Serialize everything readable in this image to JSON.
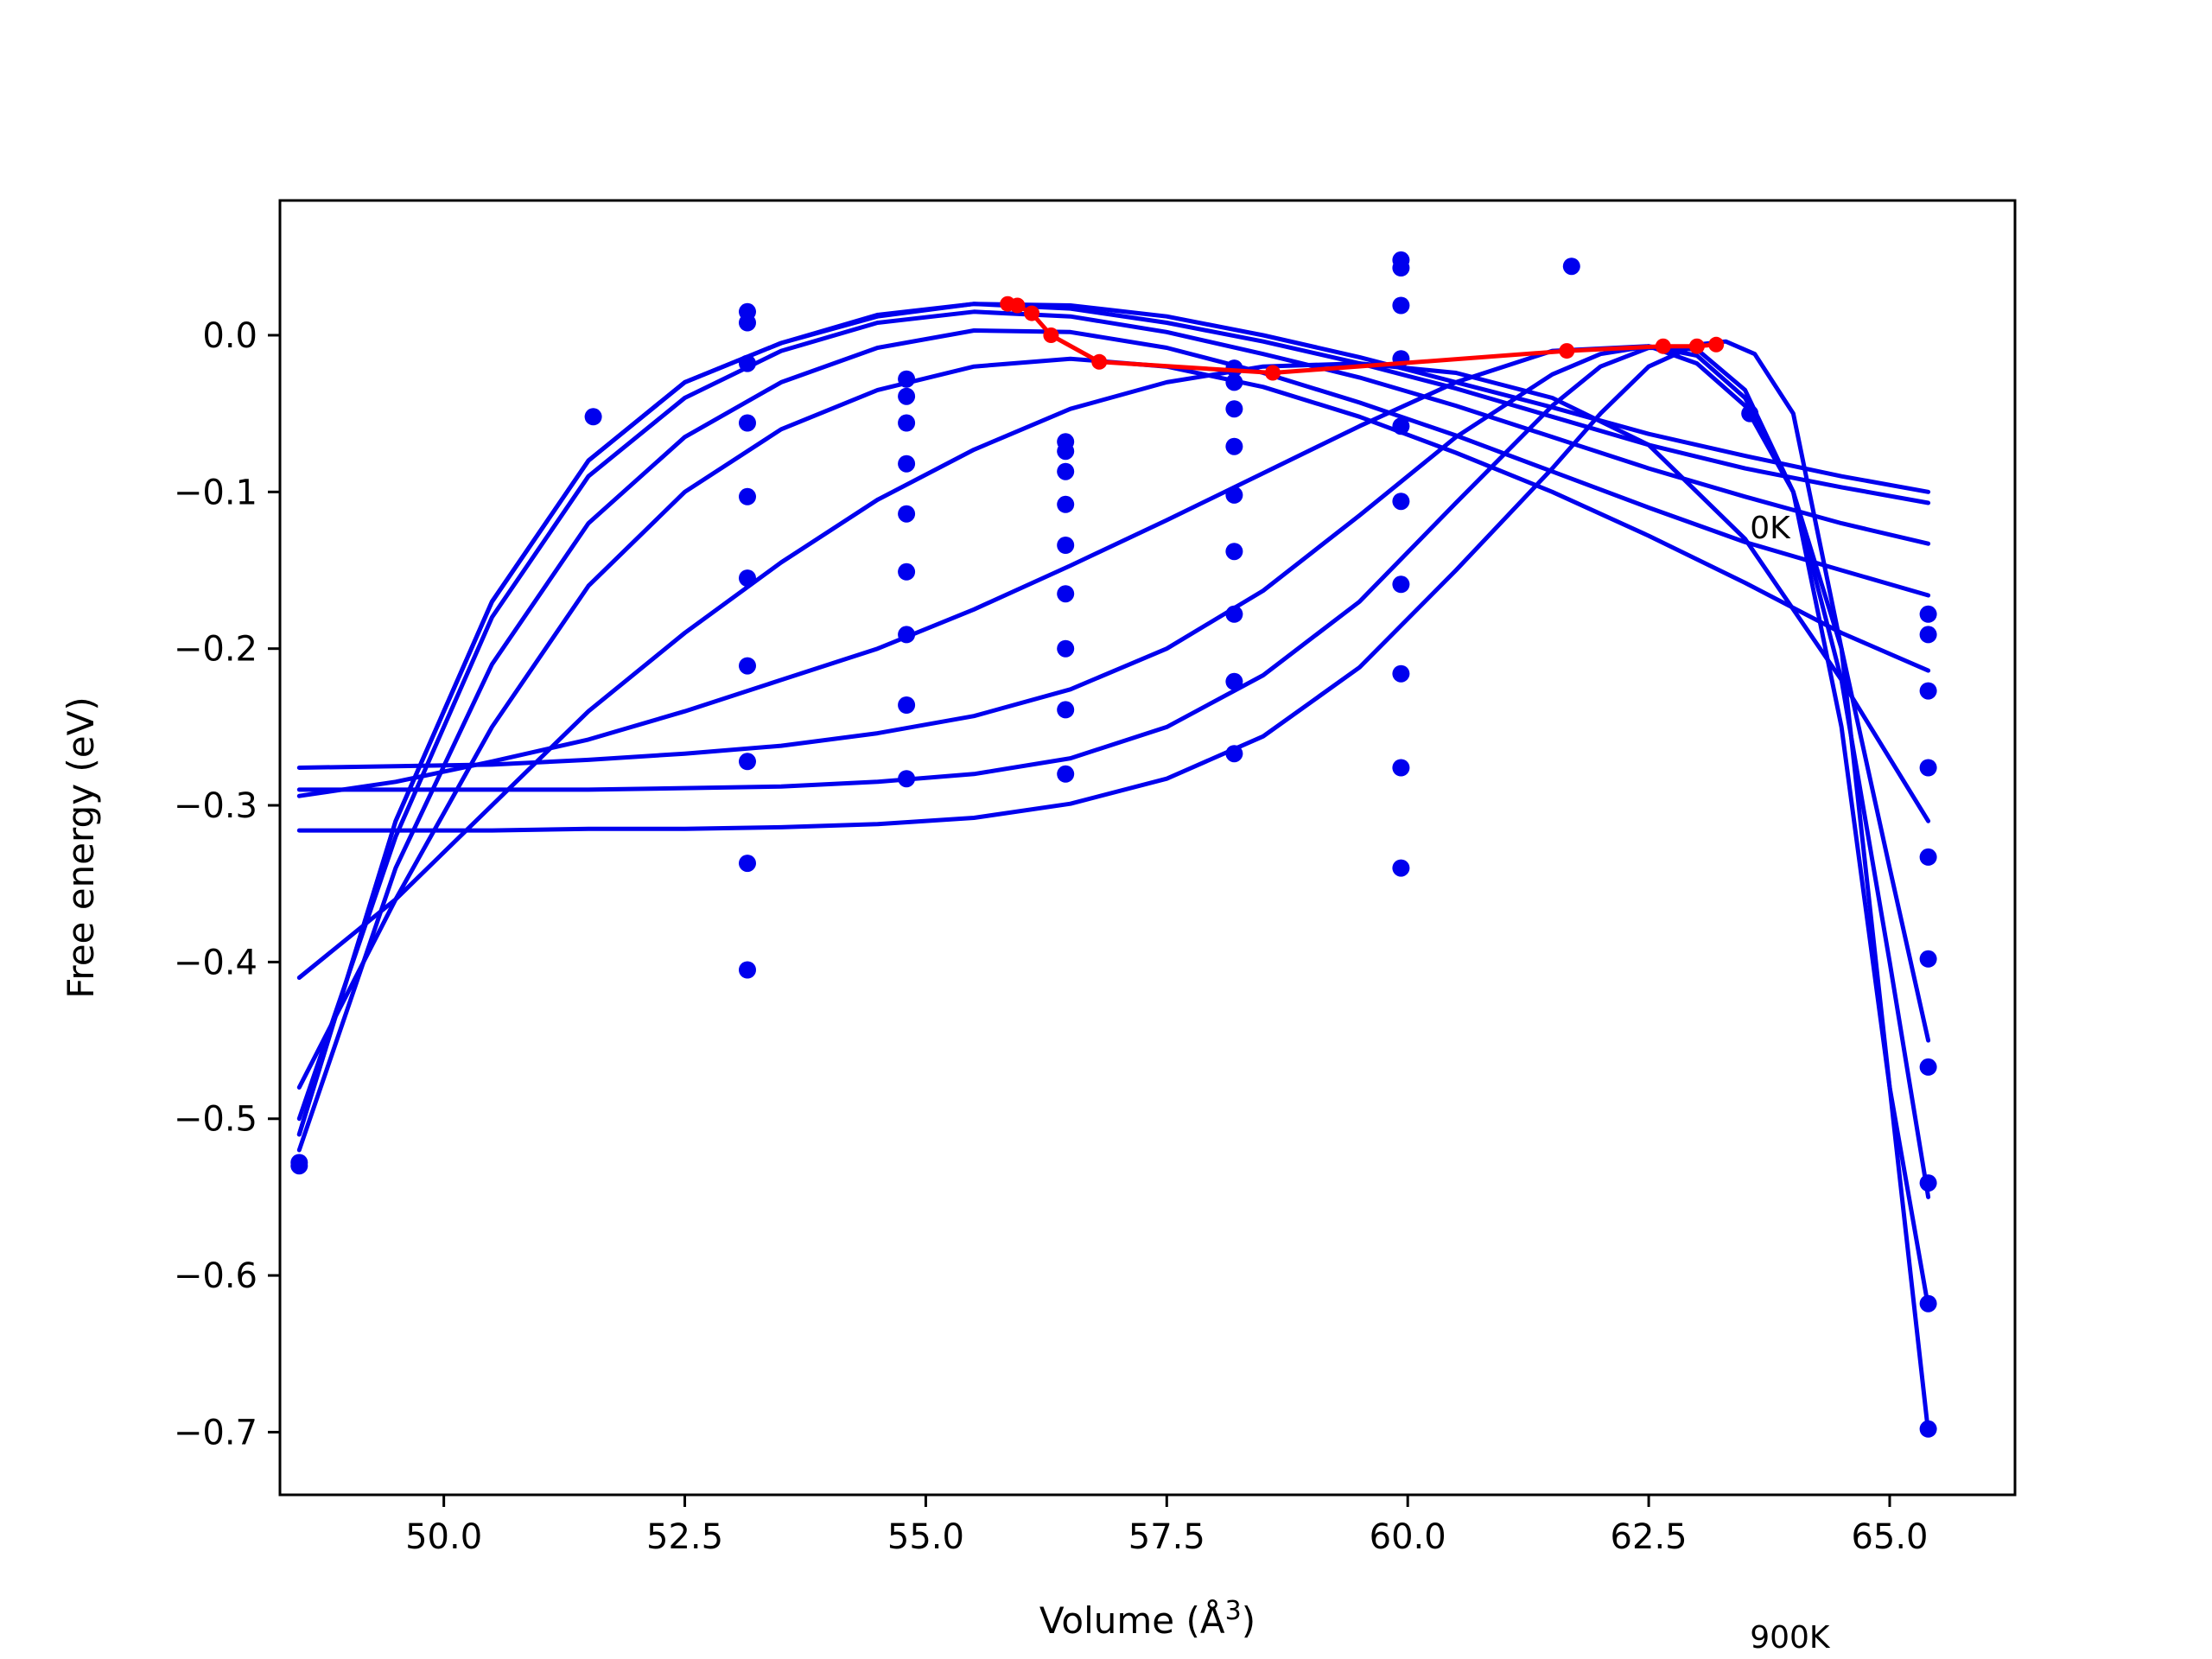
{
  "chart_data": {
    "type": "line",
    "title": "",
    "xlabel": "Volume (Å",
    "xlabel_sup": "3",
    "xlabel_close": ")",
    "ylabel": "Free energy (eV)",
    "xlim": [
      48.3,
      66.3
    ],
    "ylim": [
      -0.74,
      0.086
    ],
    "xticks": [
      {
        "value": 50.0,
        "label": "50.0"
      },
      {
        "value": 52.5,
        "label": "52.5"
      },
      {
        "value": 55.0,
        "label": "55.0"
      },
      {
        "value": 57.5,
        "label": "57.5"
      },
      {
        "value": 60.0,
        "label": "60.0"
      },
      {
        "value": 62.5,
        "label": "62.5"
      },
      {
        "value": 65.0,
        "label": "65.0"
      }
    ],
    "yticks": [
      {
        "value": 0.0,
        "label": "0.0"
      },
      {
        "value": -0.1,
        "label": "−0.1"
      },
      {
        "value": -0.2,
        "label": "−0.2"
      },
      {
        "value": -0.3,
        "label": "−0.3"
      },
      {
        "value": -0.4,
        "label": "−0.4"
      },
      {
        "value": -0.5,
        "label": "−0.5"
      },
      {
        "value": -0.6,
        "label": "−0.6"
      },
      {
        "value": -0.7,
        "label": "−0.7"
      }
    ],
    "grid": false,
    "colors": {
      "fit": "#0000ee",
      "points": "#0000ee",
      "minimum": "#ff0000"
    },
    "annotations": [
      {
        "text": "0K",
        "x": 63.55,
        "y": -0.122
      },
      {
        "text": "900K",
        "x": 63.55,
        "y": -0.83
      }
    ],
    "fit_curves": [
      {
        "x": [
          48.5,
          49.5,
          50.5,
          51.5,
          52.5,
          53.5,
          54.5,
          55.5,
          56.5,
          57.5,
          58.5,
          59.5,
          60.5,
          61.5,
          62.5,
          63.5,
          64.5,
          65.4
        ],
        "y": [
          -0.51,
          -0.31,
          -0.17,
          -0.08,
          -0.03,
          -0.005,
          0.013,
          0.02,
          0.019,
          0.012,
          0.0,
          -0.014,
          -0.03,
          -0.046,
          -0.063,
          -0.077,
          -0.09,
          -0.1
        ]
      },
      {
        "x": [
          48.5,
          49.5,
          50.5,
          51.5,
          52.5,
          53.5,
          54.5,
          55.5,
          56.5,
          57.5,
          58.5,
          59.5,
          60.5,
          61.5,
          62.5,
          63.5,
          64.5,
          65.4
        ],
        "y": [
          -0.51,
          -0.31,
          -0.17,
          -0.08,
          -0.03,
          -0.005,
          0.012,
          0.02,
          0.017,
          0.008,
          -0.004,
          -0.018,
          -0.034,
          -0.052,
          -0.07,
          -0.085,
          -0.097,
          -0.107
        ]
      },
      {
        "x": [
          48.5,
          49.5,
          50.5,
          51.5,
          52.5,
          53.5,
          54.5,
          55.5,
          56.5,
          57.5,
          58.5,
          59.5,
          60.5,
          61.5,
          62.5,
          63.5,
          64.5,
          65.4
        ],
        "y": [
          -0.5,
          -0.32,
          -0.18,
          -0.09,
          -0.04,
          -0.01,
          0.008,
          0.015,
          0.012,
          0.002,
          -0.012,
          -0.027,
          -0.045,
          -0.065,
          -0.085,
          -0.103,
          -0.12,
          -0.133
        ]
      },
      {
        "x": [
          48.5,
          49.5,
          50.5,
          51.5,
          52.5,
          53.5,
          54.5,
          55.5,
          56.5,
          57.5,
          58.5,
          59.5,
          60.5,
          61.5,
          62.5,
          63.5,
          64.5,
          65.4
        ],
        "y": [
          -0.52,
          -0.34,
          -0.21,
          -0.12,
          -0.065,
          -0.03,
          -0.008,
          0.003,
          0.002,
          -0.008,
          -0.024,
          -0.043,
          -0.064,
          -0.087,
          -0.11,
          -0.132,
          -0.15,
          -0.166
        ]
      },
      {
        "x": [
          48.5,
          49.5,
          50.5,
          51.5,
          52.5,
          53.5,
          54.5,
          55.5,
          56.5,
          57.5,
          58.5,
          59.5,
          60.5,
          61.5,
          62.5,
          63.5,
          64.5,
          65.4
        ],
        "y": [
          -0.48,
          -0.36,
          -0.25,
          -0.16,
          -0.1,
          -0.06,
          -0.035,
          -0.02,
          -0.015,
          -0.02,
          -0.033,
          -0.052,
          -0.075,
          -0.1,
          -0.128,
          -0.158,
          -0.19,
          -0.214
        ]
      },
      {
        "x": [
          48.5,
          49.5,
          50.5,
          51.5,
          52.5,
          53.5,
          54.5,
          55.5,
          56.5,
          57.5,
          58.5,
          59.5,
          60.5,
          61.5,
          62.5,
          63.5,
          64.5,
          65.4
        ],
        "y": [
          -0.41,
          -0.36,
          -0.3,
          -0.24,
          -0.19,
          -0.145,
          -0.105,
          -0.073,
          -0.047,
          -0.03,
          -0.02,
          -0.018,
          -0.024,
          -0.04,
          -0.07,
          -0.13,
          -0.22,
          -0.31
        ]
      },
      {
        "x": [
          48.5,
          49.5,
          50.5,
          51.5,
          52.5,
          53.5,
          54.5,
          55.5,
          56.5,
          57.5,
          58.5,
          59.5,
          60.5,
          61.5,
          62.5,
          63.0,
          63.5,
          64.0,
          64.5,
          65.0,
          65.4
        ],
        "y": [
          -0.294,
          -0.285,
          -0.272,
          -0.258,
          -0.24,
          -0.22,
          -0.2,
          -0.175,
          -0.147,
          -0.118,
          -0.088,
          -0.058,
          -0.03,
          -0.01,
          -0.007,
          -0.018,
          -0.045,
          -0.1,
          -0.2,
          -0.34,
          -0.45
        ]
      },
      {
        "x": [
          48.5,
          49.5,
          50.5,
          51.5,
          52.5,
          53.5,
          54.5,
          55.5,
          56.5,
          57.5,
          58.5,
          59.5,
          60.5,
          61.5,
          62.0,
          62.5,
          63.0,
          63.5,
          64.0,
          64.5,
          65.0,
          65.4
        ],
        "y": [
          -0.276,
          -0.275,
          -0.274,
          -0.271,
          -0.267,
          -0.262,
          -0.254,
          -0.243,
          -0.226,
          -0.2,
          -0.163,
          -0.115,
          -0.065,
          -0.025,
          -0.012,
          -0.007,
          -0.013,
          -0.04,
          -0.1,
          -0.22,
          -0.4,
          -0.55
        ]
      },
      {
        "x": [
          48.5,
          49.5,
          50.5,
          51.5,
          52.5,
          53.5,
          54.5,
          55.5,
          56.5,
          57.5,
          58.5,
          59.5,
          60.5,
          61.5,
          62.0,
          62.5,
          63.0,
          63.5,
          64.0,
          64.5,
          65.0,
          65.4
        ],
        "y": [
          -0.29,
          -0.29,
          -0.29,
          -0.29,
          -0.289,
          -0.288,
          -0.285,
          -0.28,
          -0.27,
          -0.25,
          -0.217,
          -0.17,
          -0.107,
          -0.045,
          -0.02,
          -0.008,
          -0.009,
          -0.035,
          -0.1,
          -0.25,
          -0.48,
          -0.62
        ]
      },
      {
        "x": [
          48.5,
          49.5,
          50.5,
          51.5,
          52.5,
          53.5,
          54.5,
          55.5,
          56.5,
          57.5,
          58.5,
          59.5,
          60.5,
          61.5,
          62.0,
          62.5,
          63.0,
          63.3,
          63.6,
          64.0,
          64.5,
          65.0,
          65.4
        ],
        "y": [
          -0.316,
          -0.316,
          -0.316,
          -0.315,
          -0.315,
          -0.314,
          -0.312,
          -0.308,
          -0.299,
          -0.283,
          -0.256,
          -0.212,
          -0.15,
          -0.085,
          -0.05,
          -0.02,
          -0.006,
          -0.004,
          -0.012,
          -0.05,
          -0.2,
          -0.48,
          -0.7
        ]
      }
    ],
    "data_points": {
      "x": [
        48.5,
        48.5,
        51.55,
        53.15,
        53.15,
        53.15,
        53.15,
        53.15,
        53.15,
        53.15,
        53.15,
        53.15,
        53.15,
        54.8,
        54.8,
        54.8,
        54.8,
        54.8,
        54.8,
        54.8,
        54.8,
        54.8,
        56.45,
        56.45,
        56.45,
        56.45,
        56.45,
        56.45,
        56.45,
        56.45,
        56.45,
        58.2,
        58.2,
        58.2,
        58.2,
        58.2,
        58.2,
        58.2,
        58.2,
        58.2,
        59.93,
        59.93,
        59.93,
        59.93,
        59.93,
        59.93,
        59.93,
        59.93,
        59.93,
        59.93,
        61.7,
        63.55,
        65.4,
        65.4,
        65.4,
        65.4,
        65.4,
        65.4,
        65.4,
        65.4,
        65.4,
        65.4
      ],
      "y": [
        -0.528,
        -0.53,
        -0.052,
        0.015,
        0.008,
        -0.018,
        -0.056,
        -0.103,
        -0.155,
        -0.211,
        -0.272,
        -0.337,
        -0.405,
        -0.028,
        -0.039,
        -0.056,
        -0.082,
        -0.114,
        -0.151,
        -0.191,
        -0.236,
        -0.283,
        -0.068,
        -0.074,
        -0.087,
        -0.108,
        -0.134,
        -0.165,
        -0.2,
        -0.239,
        -0.28,
        -0.021,
        -0.03,
        -0.047,
        -0.071,
        -0.102,
        -0.138,
        -0.178,
        -0.221,
        -0.267,
        0.048,
        0.043,
        0.019,
        -0.015,
        -0.058,
        -0.106,
        -0.159,
        -0.216,
        -0.276,
        -0.34,
        0.044,
        -0.05,
        -0.178,
        -0.191,
        -0.227,
        -0.276,
        -0.333,
        -0.398,
        -0.467,
        -0.541,
        -0.618,
        -0.698
      ]
    },
    "equilibrium_path": {
      "x": [
        55.85,
        55.95,
        56.1,
        56.3,
        56.8,
        58.6,
        61.65,
        62.65,
        63.0,
        63.2
      ],
      "y": [
        0.02,
        0.019,
        0.014,
        0.0,
        -0.017,
        -0.024,
        -0.01,
        -0.007,
        -0.007,
        -0.006
      ]
    }
  }
}
